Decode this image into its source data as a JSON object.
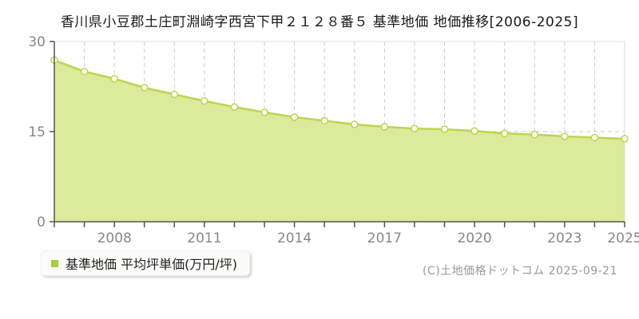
{
  "page": {
    "title": "香川県小豆郡土庄町淵崎字西宮下甲２１２８番５ 基準地価 地価推移[2006-2025]",
    "copyright": "(C)土地価格ドットコム 2025-09-21"
  },
  "legend": {
    "label": "基準地価 平均坪単価(万円/坪)",
    "marker_color": "#a6ce39"
  },
  "chart_data": {
    "type": "area",
    "title": "香川県小豆郡土庄町淵崎字西宮下甲２１２８番５ 基準地価 地価推移[2006-2025]",
    "x": [
      2006,
      2007,
      2008,
      2009,
      2010,
      2011,
      2012,
      2013,
      2014,
      2015,
      2016,
      2017,
      2018,
      2019,
      2020,
      2021,
      2022,
      2023,
      2024,
      2025
    ],
    "series": [
      {
        "name": "基準地価 平均坪単価(万円/坪)",
        "values": [
          26.9,
          25.0,
          23.8,
          22.3,
          21.2,
          20.1,
          19.1,
          18.2,
          17.4,
          16.8,
          16.2,
          15.8,
          15.5,
          15.4,
          15.1,
          14.7,
          14.5,
          14.2,
          14.0,
          13.8
        ]
      }
    ],
    "xlabel": "",
    "ylabel": "",
    "ylim": [
      0,
      30
    ],
    "yticks": [
      0,
      15,
      30
    ],
    "xticks": [
      2008,
      2011,
      2014,
      2017,
      2020,
      2023,
      2025
    ],
    "grid": true,
    "legend_position": "bottom-left",
    "colors": {
      "line": "#b9d64e",
      "fill": "#dcea9b",
      "marker_fill": "#fffef4",
      "grid": "#cccccc",
      "border": "#dddddd",
      "axis": "#555555",
      "tick_label": "#888888"
    }
  }
}
